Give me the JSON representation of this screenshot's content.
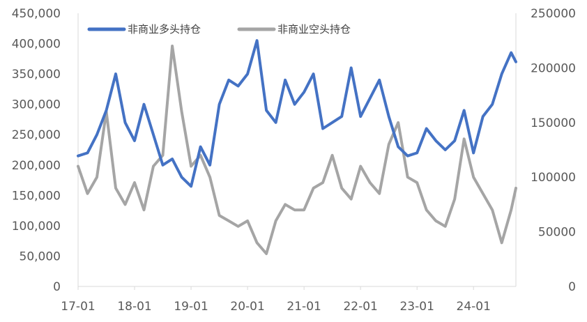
{
  "chart_data": {
    "type": "line",
    "title": "",
    "xlabel": "",
    "ylabel": "",
    "x_ticks": [
      "17-01",
      "18-01",
      "19-01",
      "20-01",
      "21-01",
      "22-01",
      "23-01",
      "24-01"
    ],
    "x_range": [
      "2017-01",
      "2024-10"
    ],
    "y_left": {
      "ticks": [
        "0",
        "50,000",
        "100,000",
        "150,000",
        "200,000",
        "250,000",
        "300,000",
        "350,000",
        "400,000",
        "450,000"
      ],
      "ylim": [
        0,
        450000
      ]
    },
    "y_right": {
      "ticks": [
        "0",
        "50000",
        "100000",
        "150000",
        "200000",
        "250000"
      ],
      "ylim": [
        0,
        250000
      ]
    },
    "legend_position": "top-left",
    "grid": false,
    "series": [
      {
        "name": "非商业多头持仓",
        "axis": "left",
        "color": "#4472C4",
        "x": [
          "2017-01",
          "2017-03",
          "2017-05",
          "2017-07",
          "2017-09",
          "2017-11",
          "2018-01",
          "2018-03",
          "2018-05",
          "2018-07",
          "2018-09",
          "2018-11",
          "2019-01",
          "2019-03",
          "2019-05",
          "2019-07",
          "2019-09",
          "2019-11",
          "2020-01",
          "2020-03",
          "2020-05",
          "2020-07",
          "2020-09",
          "2020-11",
          "2021-01",
          "2021-03",
          "2021-05",
          "2021-07",
          "2021-09",
          "2021-11",
          "2022-01",
          "2022-03",
          "2022-05",
          "2022-07",
          "2022-09",
          "2022-11",
          "2023-01",
          "2023-03",
          "2023-05",
          "2023-07",
          "2023-09",
          "2023-11",
          "2024-01",
          "2024-03",
          "2024-05",
          "2024-07",
          "2024-09",
          "2024-10"
        ],
        "values": [
          215000,
          220000,
          250000,
          290000,
          350000,
          270000,
          240000,
          300000,
          250000,
          200000,
          210000,
          180000,
          165000,
          230000,
          200000,
          300000,
          340000,
          330000,
          350000,
          405000,
          290000,
          270000,
          340000,
          300000,
          320000,
          350000,
          260000,
          270000,
          280000,
          360000,
          280000,
          310000,
          340000,
          280000,
          230000,
          215000,
          220000,
          260000,
          240000,
          225000,
          240000,
          290000,
          220000,
          280000,
          300000,
          350000,
          385000,
          370000
        ]
      },
      {
        "name": "非商业空头持仓",
        "axis": "right",
        "color": "#A5A5A5",
        "x": [
          "2017-01",
          "2017-03",
          "2017-05",
          "2017-07",
          "2017-09",
          "2017-11",
          "2018-01",
          "2018-03",
          "2018-05",
          "2018-07",
          "2018-09",
          "2018-11",
          "2019-01",
          "2019-03",
          "2019-05",
          "2019-07",
          "2019-09",
          "2019-11",
          "2020-01",
          "2020-03",
          "2020-05",
          "2020-07",
          "2020-09",
          "2020-11",
          "2021-01",
          "2021-03",
          "2021-05",
          "2021-07",
          "2021-09",
          "2021-11",
          "2022-01",
          "2022-03",
          "2022-05",
          "2022-07",
          "2022-09",
          "2022-11",
          "2023-01",
          "2023-03",
          "2023-05",
          "2023-07",
          "2023-09",
          "2023-11",
          "2024-01",
          "2024-03",
          "2024-05",
          "2024-07",
          "2024-09",
          "2024-10"
        ],
        "values": [
          110000,
          85000,
          100000,
          160000,
          90000,
          75000,
          95000,
          70000,
          110000,
          120000,
          220000,
          160000,
          110000,
          120000,
          100000,
          65000,
          60000,
          55000,
          60000,
          40000,
          30000,
          60000,
          75000,
          70000,
          70000,
          90000,
          95000,
          120000,
          90000,
          80000,
          110000,
          95000,
          85000,
          130000,
          150000,
          100000,
          95000,
          70000,
          60000,
          55000,
          80000,
          135000,
          100000,
          85000,
          70000,
          40000,
          70000,
          90000
        ]
      }
    ]
  }
}
